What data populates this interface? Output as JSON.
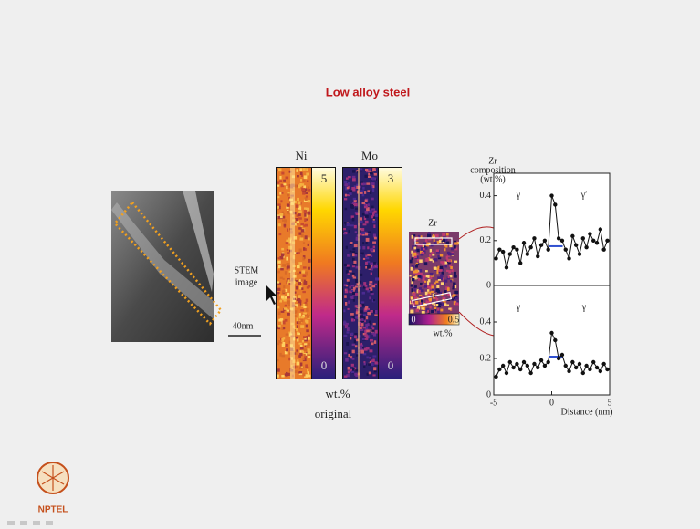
{
  "title": "Low alloy steel",
  "stem": {
    "label": [
      "STEM",
      "image"
    ],
    "scale": "40nm"
  },
  "maps": [
    {
      "element": "Ni",
      "max": 5,
      "min": 0
    },
    {
      "element": "Mo",
      "max": 3,
      "min": 0
    }
  ],
  "maps_unit": "wt.%",
  "maps_caption": "original",
  "zr_map": {
    "element": "Zr",
    "min": 0,
    "max": 0.5,
    "unit": "wt.%"
  },
  "logo": "NPTEL",
  "chart_data": [
    {
      "type": "line",
      "y_label": [
        "Zr",
        "composition",
        "(wt.%)"
      ],
      "annotations": [
        "γ",
        "γ′"
      ],
      "color": "#111111",
      "x": [
        -4.8,
        -4.5,
        -4.2,
        -3.9,
        -3.6,
        -3.3,
        -3.0,
        -2.7,
        -2.4,
        -2.1,
        -1.8,
        -1.5,
        -1.2,
        -0.9,
        -0.6,
        -0.3,
        0.0,
        0.3,
        0.6,
        0.9,
        1.2,
        1.5,
        1.8,
        2.1,
        2.4,
        2.7,
        3.0,
        3.3,
        3.6,
        3.9,
        4.2,
        4.5,
        4.8
      ],
      "values": [
        0.12,
        0.16,
        0.15,
        0.08,
        0.14,
        0.17,
        0.16,
        0.1,
        0.19,
        0.14,
        0.17,
        0.21,
        0.13,
        0.18,
        0.2,
        0.16,
        0.4,
        0.36,
        0.21,
        0.2,
        0.16,
        0.12,
        0.22,
        0.18,
        0.14,
        0.21,
        0.17,
        0.23,
        0.2,
        0.19,
        0.25,
        0.16,
        0.2
      ],
      "xlim": [
        -5,
        5
      ],
      "ylim": [
        0,
        0.5
      ],
      "yticks": [
        0.4,
        0.2,
        0
      ]
    },
    {
      "type": "line",
      "x_label": "Distance (nm)",
      "annotations": [
        "γ",
        "γ"
      ],
      "color": "#111111",
      "x": [
        -4.8,
        -4.5,
        -4.2,
        -3.9,
        -3.6,
        -3.3,
        -3.0,
        -2.7,
        -2.4,
        -2.1,
        -1.8,
        -1.5,
        -1.2,
        -0.9,
        -0.6,
        -0.3,
        0.0,
        0.3,
        0.6,
        0.9,
        1.2,
        1.5,
        1.8,
        2.1,
        2.4,
        2.7,
        3.0,
        3.3,
        3.6,
        3.9,
        4.2,
        4.5,
        4.8
      ],
      "values": [
        0.1,
        0.14,
        0.16,
        0.12,
        0.18,
        0.15,
        0.17,
        0.14,
        0.18,
        0.16,
        0.12,
        0.17,
        0.15,
        0.19,
        0.16,
        0.18,
        0.34,
        0.3,
        0.2,
        0.22,
        0.16,
        0.13,
        0.18,
        0.15,
        0.17,
        0.12,
        0.16,
        0.14,
        0.18,
        0.15,
        0.13,
        0.17,
        0.14
      ],
      "xlim": [
        -5,
        5
      ],
      "xticks": [
        -5,
        0,
        5
      ],
      "ylim": [
        0,
        0.6
      ],
      "yticks": [
        0.4,
        0.2,
        0
      ]
    }
  ]
}
